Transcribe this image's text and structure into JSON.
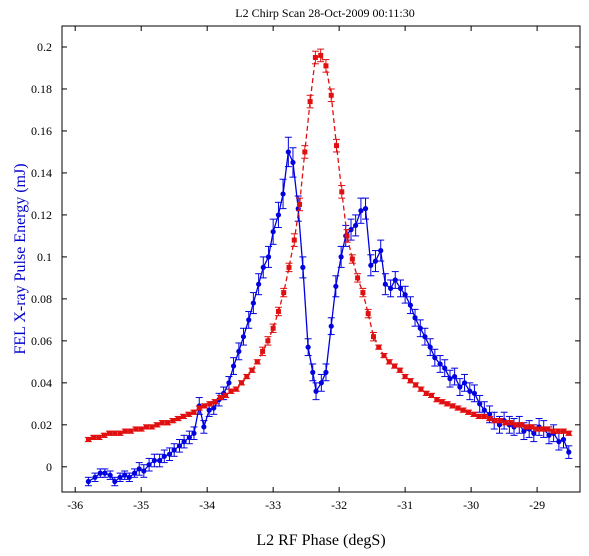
{
  "chart_data": {
    "type": "line",
    "title": "L2 Chirp Scan 28-Oct-2009 00:11:30",
    "xlabel": "L2 RF Phase (degS)",
    "ylabel": "FEL X-ray Pulse Energy (mJ)",
    "xlim": [
      -36.2,
      -28.35
    ],
    "ylim": [
      -0.012,
      0.21
    ],
    "x_ticks": [
      -36,
      -35,
      -34,
      -33,
      -32,
      -31,
      -30,
      -29
    ],
    "y_ticks": [
      0,
      0.02,
      0.04,
      0.06,
      0.08,
      0.1,
      0.12,
      0.14,
      0.16,
      0.18,
      0.2
    ],
    "grid": false,
    "colors": {
      "axes": "#000000",
      "ylabel": "#0000c8"
    },
    "series": [
      {
        "color": "#0000e0",
        "line_style": "solid",
        "marker": "circle",
        "points": [
          [
            -35.8,
            -0.007,
            0.002
          ],
          [
            -35.7,
            -0.005,
            0.002
          ],
          [
            -35.62,
            -0.003,
            0.002
          ],
          [
            -35.55,
            -0.003,
            0.002
          ],
          [
            -35.47,
            -0.004,
            0.002
          ],
          [
            -35.4,
            -0.007,
            0.002
          ],
          [
            -35.32,
            -0.005,
            0.002
          ],
          [
            -35.25,
            -0.004,
            0.002
          ],
          [
            -35.18,
            -0.005,
            0.002
          ],
          [
            -35.1,
            -0.003,
            0.002
          ],
          [
            -35.03,
            -0.001,
            0.003
          ],
          [
            -34.96,
            -0.002,
            0.003
          ],
          [
            -34.88,
            0.001,
            0.003
          ],
          [
            -34.8,
            0.003,
            0.003
          ],
          [
            -34.72,
            0.003,
            0.003
          ],
          [
            -34.65,
            0.005,
            0.003
          ],
          [
            -34.57,
            0.006,
            0.003
          ],
          [
            -34.5,
            0.008,
            0.003
          ],
          [
            -34.42,
            0.01,
            0.003
          ],
          [
            -34.35,
            0.012,
            0.003
          ],
          [
            -34.27,
            0.014,
            0.003
          ],
          [
            -34.2,
            0.016,
            0.003
          ],
          [
            -34.12,
            0.029,
            0.004
          ],
          [
            -34.05,
            0.019,
            0.003
          ],
          [
            -33.97,
            0.027,
            0.003
          ],
          [
            -33.9,
            0.028,
            0.003
          ],
          [
            -33.82,
            0.032,
            0.003
          ],
          [
            -33.75,
            0.035,
            0.003
          ],
          [
            -33.67,
            0.04,
            0.003
          ],
          [
            -33.6,
            0.048,
            0.004
          ],
          [
            -33.52,
            0.055,
            0.004
          ],
          [
            -33.45,
            0.062,
            0.004
          ],
          [
            -33.37,
            0.07,
            0.004
          ],
          [
            -33.3,
            0.078,
            0.005
          ],
          [
            -33.22,
            0.087,
            0.005
          ],
          [
            -33.15,
            0.095,
            0.005
          ],
          [
            -33.07,
            0.1,
            0.005
          ],
          [
            -33.0,
            0.112,
            0.006
          ],
          [
            -32.92,
            0.12,
            0.006
          ],
          [
            -32.85,
            0.13,
            0.007
          ],
          [
            -32.77,
            0.15,
            0.007
          ],
          [
            -32.7,
            0.145,
            0.007
          ],
          [
            -32.62,
            0.123,
            0.006
          ],
          [
            -32.55,
            0.095,
            0.005
          ],
          [
            -32.47,
            0.057,
            0.004
          ],
          [
            -32.4,
            0.045,
            0.004
          ],
          [
            -32.35,
            0.036,
            0.004
          ],
          [
            -32.27,
            0.04,
            0.004
          ],
          [
            -32.2,
            0.045,
            0.004
          ],
          [
            -32.12,
            0.067,
            0.004
          ],
          [
            -32.05,
            0.086,
            0.005
          ],
          [
            -31.97,
            0.1,
            0.005
          ],
          [
            -31.9,
            0.11,
            0.005
          ],
          [
            -31.82,
            0.113,
            0.005
          ],
          [
            -31.75,
            0.115,
            0.005
          ],
          [
            -31.67,
            0.122,
            0.006
          ],
          [
            -31.6,
            0.123,
            0.005
          ],
          [
            -31.52,
            0.096,
            0.005
          ],
          [
            -31.45,
            0.098,
            0.005
          ],
          [
            -31.37,
            0.103,
            0.005
          ],
          [
            -31.3,
            0.087,
            0.005
          ],
          [
            -31.22,
            0.085,
            0.004
          ],
          [
            -31.15,
            0.089,
            0.004
          ],
          [
            -31.07,
            0.085,
            0.004
          ],
          [
            -31.0,
            0.082,
            0.004
          ],
          [
            -30.92,
            0.077,
            0.004
          ],
          [
            -30.85,
            0.071,
            0.004
          ],
          [
            -30.77,
            0.066,
            0.004
          ],
          [
            -30.7,
            0.062,
            0.004
          ],
          [
            -30.62,
            0.057,
            0.004
          ],
          [
            -30.55,
            0.052,
            0.004
          ],
          [
            -30.47,
            0.049,
            0.004
          ],
          [
            -30.4,
            0.047,
            0.004
          ],
          [
            -30.32,
            0.042,
            0.004
          ],
          [
            -30.25,
            0.043,
            0.004
          ],
          [
            -30.17,
            0.038,
            0.004
          ],
          [
            -30.1,
            0.04,
            0.004
          ],
          [
            -30.02,
            0.036,
            0.004
          ],
          [
            -29.95,
            0.035,
            0.004
          ],
          [
            -29.87,
            0.03,
            0.004
          ],
          [
            -29.8,
            0.027,
            0.004
          ],
          [
            -29.72,
            0.025,
            0.004
          ],
          [
            -29.65,
            0.022,
            0.004
          ],
          [
            -29.57,
            0.02,
            0.004
          ],
          [
            -29.5,
            0.022,
            0.004
          ],
          [
            -29.42,
            0.02,
            0.004
          ],
          [
            -29.35,
            0.019,
            0.004
          ],
          [
            -29.27,
            0.02,
            0.004
          ],
          [
            -29.2,
            0.017,
            0.004
          ],
          [
            -29.12,
            0.018,
            0.004
          ],
          [
            -29.05,
            0.016,
            0.004
          ],
          [
            -28.97,
            0.019,
            0.004
          ],
          [
            -28.9,
            0.018,
            0.004
          ],
          [
            -28.82,
            0.015,
            0.004
          ],
          [
            -28.75,
            0.016,
            0.004
          ],
          [
            -28.67,
            0.012,
            0.004
          ],
          [
            -28.6,
            0.013,
            0.004
          ],
          [
            -28.52,
            0.007,
            0.003
          ]
        ]
      },
      {
        "color": "#e01010",
        "line_style": "dashed",
        "marker": "square",
        "points": [
          [
            -35.8,
            0.013,
            0.001
          ],
          [
            -35.72,
            0.014,
            0.001
          ],
          [
            -35.64,
            0.014,
            0.001
          ],
          [
            -35.56,
            0.015,
            0.001
          ],
          [
            -35.48,
            0.016,
            0.001
          ],
          [
            -35.4,
            0.016,
            0.001
          ],
          [
            -35.32,
            0.016,
            0.001
          ],
          [
            -35.24,
            0.017,
            0.001
          ],
          [
            -35.16,
            0.017,
            0.001
          ],
          [
            -35.08,
            0.018,
            0.001
          ],
          [
            -35.0,
            0.018,
            0.001
          ],
          [
            -34.92,
            0.019,
            0.001
          ],
          [
            -34.84,
            0.019,
            0.001
          ],
          [
            -34.76,
            0.02,
            0.001
          ],
          [
            -34.68,
            0.021,
            0.001
          ],
          [
            -34.6,
            0.021,
            0.001
          ],
          [
            -34.52,
            0.022,
            0.001
          ],
          [
            -34.44,
            0.023,
            0.001
          ],
          [
            -34.36,
            0.024,
            0.001
          ],
          [
            -34.28,
            0.025,
            0.001
          ],
          [
            -34.2,
            0.026,
            0.001
          ],
          [
            -34.12,
            0.028,
            0.001
          ],
          [
            -34.04,
            0.029,
            0.001
          ],
          [
            -33.96,
            0.03,
            0.001
          ],
          [
            -33.88,
            0.031,
            0.001
          ],
          [
            -33.8,
            0.033,
            0.001
          ],
          [
            -33.72,
            0.034,
            0.001
          ],
          [
            -33.64,
            0.036,
            0.001
          ],
          [
            -33.56,
            0.037,
            0.001
          ],
          [
            -33.48,
            0.04,
            0.001
          ],
          [
            -33.4,
            0.043,
            0.001
          ],
          [
            -33.32,
            0.046,
            0.001
          ],
          [
            -33.24,
            0.05,
            0.001
          ],
          [
            -33.16,
            0.055,
            0.002
          ],
          [
            -33.08,
            0.06,
            0.002
          ],
          [
            -33.0,
            0.066,
            0.002
          ],
          [
            -32.92,
            0.074,
            0.002
          ],
          [
            -32.84,
            0.083,
            0.002
          ],
          [
            -32.76,
            0.095,
            0.002
          ],
          [
            -32.68,
            0.108,
            0.003
          ],
          [
            -32.6,
            0.125,
            0.003
          ],
          [
            -32.52,
            0.15,
            0.003
          ],
          [
            -32.44,
            0.174,
            0.003
          ],
          [
            -32.36,
            0.195,
            0.003
          ],
          [
            -32.28,
            0.196,
            0.003
          ],
          [
            -32.2,
            0.191,
            0.003
          ],
          [
            -32.12,
            0.177,
            0.003
          ],
          [
            -32.04,
            0.153,
            0.003
          ],
          [
            -31.96,
            0.131,
            0.003
          ],
          [
            -31.88,
            0.11,
            0.003
          ],
          [
            -31.8,
            0.099,
            0.002
          ],
          [
            -31.72,
            0.09,
            0.002
          ],
          [
            -31.64,
            0.083,
            0.002
          ],
          [
            -31.56,
            0.073,
            0.002
          ],
          [
            -31.48,
            0.062,
            0.002
          ],
          [
            -31.4,
            0.057,
            0.001
          ],
          [
            -31.32,
            0.053,
            0.001
          ],
          [
            -31.24,
            0.05,
            0.001
          ],
          [
            -31.16,
            0.048,
            0.001
          ],
          [
            -31.08,
            0.046,
            0.001
          ],
          [
            -31.0,
            0.043,
            0.001
          ],
          [
            -30.92,
            0.041,
            0.001
          ],
          [
            -30.84,
            0.039,
            0.001
          ],
          [
            -30.76,
            0.037,
            0.001
          ],
          [
            -30.68,
            0.035,
            0.001
          ],
          [
            -30.6,
            0.034,
            0.001
          ],
          [
            -30.52,
            0.032,
            0.001
          ],
          [
            -30.44,
            0.031,
            0.001
          ],
          [
            -30.36,
            0.03,
            0.001
          ],
          [
            -30.28,
            0.029,
            0.001
          ],
          [
            -30.2,
            0.028,
            0.001
          ],
          [
            -30.12,
            0.027,
            0.001
          ],
          [
            -30.04,
            0.026,
            0.001
          ],
          [
            -29.96,
            0.025,
            0.001
          ],
          [
            -29.88,
            0.024,
            0.001
          ],
          [
            -29.8,
            0.024,
            0.001
          ],
          [
            -29.72,
            0.023,
            0.001
          ],
          [
            -29.64,
            0.022,
            0.001
          ],
          [
            -29.56,
            0.022,
            0.001
          ],
          [
            -29.48,
            0.021,
            0.001
          ],
          [
            -29.4,
            0.021,
            0.001
          ],
          [
            -29.32,
            0.02,
            0.001
          ],
          [
            -29.24,
            0.02,
            0.001
          ],
          [
            -29.16,
            0.019,
            0.001
          ],
          [
            -29.08,
            0.019,
            0.001
          ],
          [
            -29.0,
            0.018,
            0.001
          ],
          [
            -28.92,
            0.018,
            0.001
          ],
          [
            -28.84,
            0.018,
            0.001
          ],
          [
            -28.76,
            0.017,
            0.001
          ],
          [
            -28.68,
            0.017,
            0.001
          ],
          [
            -28.6,
            0.017,
            0.001
          ],
          [
            -28.52,
            0.016,
            0.001
          ]
        ]
      }
    ]
  }
}
